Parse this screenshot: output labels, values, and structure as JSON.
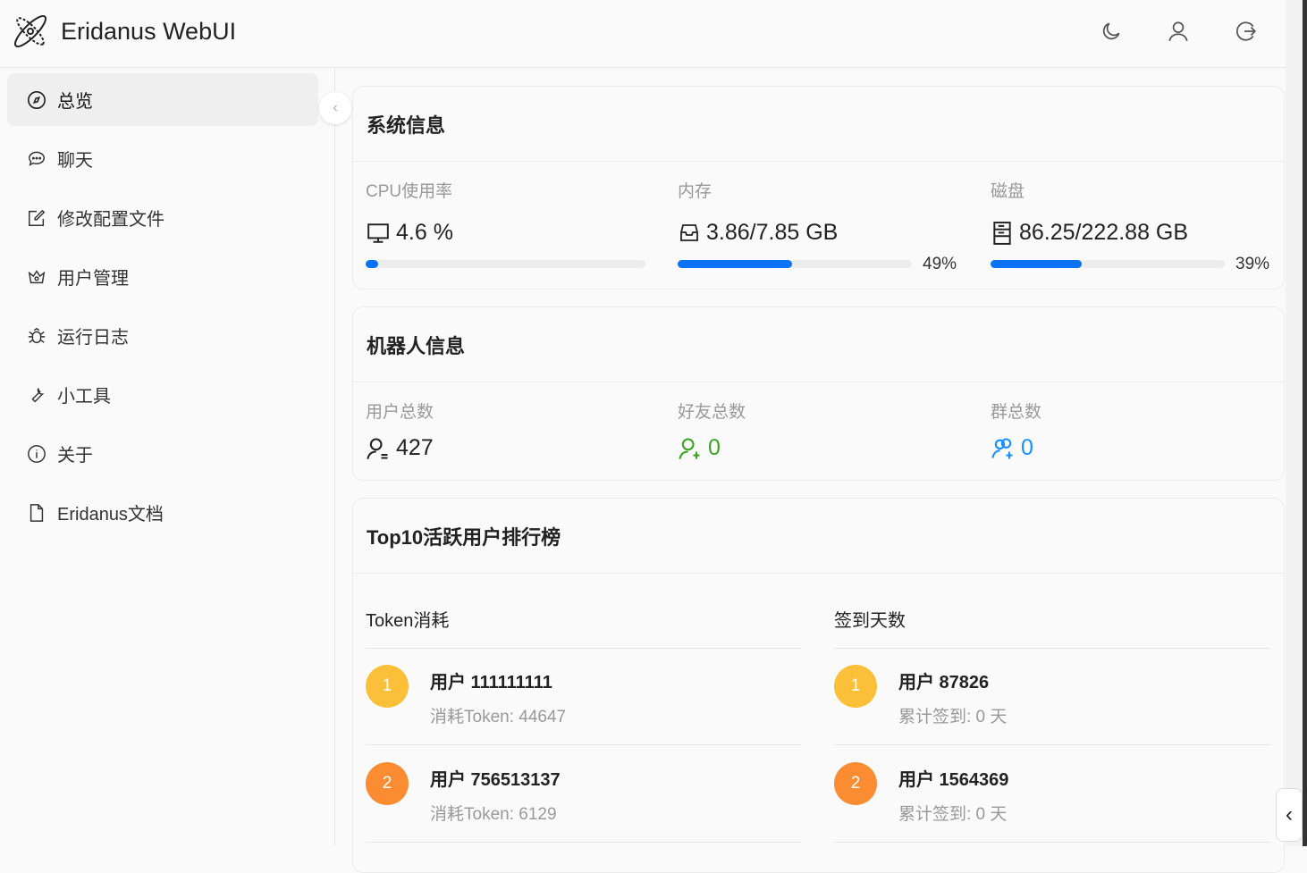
{
  "header": {
    "title": "Eridanus WebUI",
    "icons": [
      "moon-icon",
      "user-icon",
      "logout-icon"
    ]
  },
  "sidebar": {
    "items": [
      {
        "label": "总览",
        "icon": "compass-icon",
        "active": true
      },
      {
        "label": "聊天",
        "icon": "chat-icon"
      },
      {
        "label": "修改配置文件",
        "icon": "edit-icon"
      },
      {
        "label": "用户管理",
        "icon": "crown-icon"
      },
      {
        "label": "运行日志",
        "icon": "bug-icon"
      },
      {
        "label": "小工具",
        "icon": "wrench-icon"
      },
      {
        "label": "关于",
        "icon": "info-icon"
      },
      {
        "label": "Eridanus文档",
        "icon": "file-icon"
      }
    ]
  },
  "system": {
    "title": "系统信息",
    "cpu": {
      "label": "CPU使用率",
      "value": "4.6 %",
      "percent": 4.6
    },
    "memory": {
      "label": "内存",
      "value": "3.86/7.85 GB",
      "percent": 49,
      "percent_label": "49%"
    },
    "disk": {
      "label": "磁盘",
      "value": "86.25/222.88 GB",
      "percent": 39,
      "percent_label": "39%"
    }
  },
  "bot": {
    "title": "机器人信息",
    "users": {
      "label": "用户总数",
      "value": "427"
    },
    "friends": {
      "label": "好友总数",
      "value": "0"
    },
    "groups": {
      "label": "群总数",
      "value": "0"
    }
  },
  "ranking": {
    "title": "Top10活跃用户排行榜",
    "token": {
      "title": "Token消耗",
      "items": [
        {
          "rank": "1",
          "name": "用户 111111111",
          "sub": "消耗Token: 44647"
        },
        {
          "rank": "2",
          "name": "用户 756513137",
          "sub": "消耗Token: 6129"
        }
      ]
    },
    "signin": {
      "title": "签到天数",
      "items": [
        {
          "rank": "1",
          "name": "用户 87826",
          "sub": "累计签到: 0 天"
        },
        {
          "rank": "2",
          "name": "用户 1564369",
          "sub": "累计签到: 0 天"
        }
      ]
    }
  },
  "colors": {
    "accent": "#0a72f5",
    "green": "#3aa522",
    "blue": "#1890ff",
    "rank1": "#fbbf3a",
    "rank2": "#fb8c32"
  }
}
